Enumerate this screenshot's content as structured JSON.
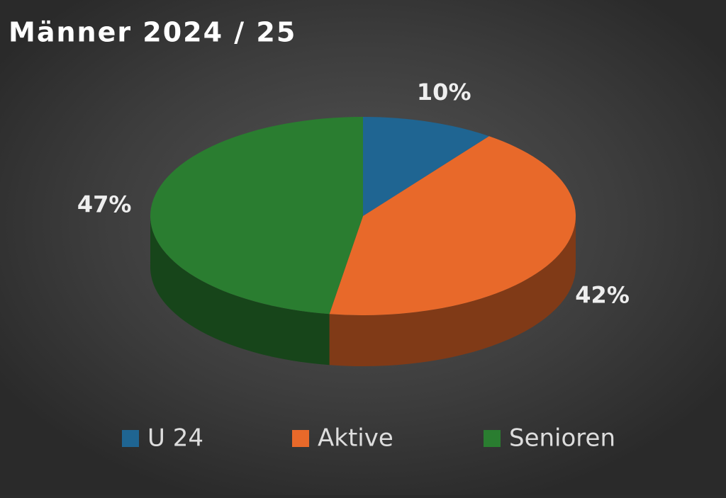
{
  "chart_data": {
    "type": "pie3d",
    "title": "Männer 2024 / 25",
    "categories": [
      "U 24",
      "Aktive",
      "Senioren"
    ],
    "values": [
      10,
      42,
      47
    ],
    "value_labels": [
      "10%",
      "42%",
      "47%"
    ],
    "colors": [
      "#1f6592",
      "#e8692a",
      "#2a7d30"
    ],
    "legend": "bottom"
  }
}
